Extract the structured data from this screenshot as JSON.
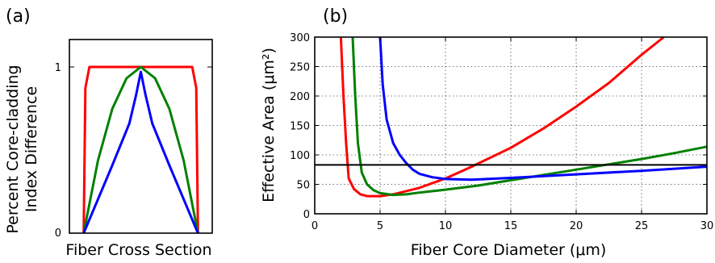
{
  "chart_data": [
    {
      "panel_label": "(a)",
      "type": "line",
      "title": "",
      "xlabel": "Fiber Cross Section",
      "ylabel_lines": [
        "Percent Core-cladding",
        "Index Difference"
      ],
      "y_ticks": [
        "0",
        "1"
      ],
      "ylim": [
        0,
        1.2
      ],
      "xlim": [
        -1.25,
        1.25
      ],
      "grid": false,
      "series": [
        {
          "color": "#ff0000",
          "profile": "step",
          "points": [
            [
              -1,
              0
            ],
            [
              -0.97,
              0.9
            ],
            [
              -0.9,
              1.03
            ],
            [
              0.9,
              1.03
            ],
            [
              0.97,
              0.9
            ],
            [
              1,
              0
            ]
          ]
        },
        {
          "color": "#008000",
          "profile": "parabolic",
          "points": [
            [
              -1,
              0
            ],
            [
              -0.75,
              0.45
            ],
            [
              -0.5,
              0.77
            ],
            [
              -0.25,
              0.96
            ],
            [
              0,
              1.03
            ],
            [
              0.25,
              0.96
            ],
            [
              0.5,
              0.77
            ],
            [
              0.75,
              0.45
            ],
            [
              1,
              0
            ]
          ]
        },
        {
          "color": "#0000ff",
          "profile": "triangular",
          "points": [
            [
              -1,
              0
            ],
            [
              -0.5,
              0.42
            ],
            [
              -0.2,
              0.68
            ],
            [
              -0.08,
              0.86
            ],
            [
              0,
              1.0
            ],
            [
              0.08,
              0.86
            ],
            [
              0.2,
              0.68
            ],
            [
              0.5,
              0.42
            ],
            [
              1,
              0
            ]
          ]
        }
      ]
    },
    {
      "panel_label": "(b)",
      "type": "line",
      "title": "",
      "xlabel": "Fiber Core Diameter (μm)",
      "ylabel": "Effective Area (μm²)",
      "xlim": [
        0,
        30
      ],
      "ylim": [
        0,
        300
      ],
      "x_ticks": [
        "0",
        "5",
        "10",
        "15",
        "20",
        "25",
        "30"
      ],
      "y_ticks": [
        "0",
        "50",
        "100",
        "150",
        "200",
        "250",
        "300"
      ],
      "grid": true,
      "hline": 83,
      "hline_color": "#000000",
      "series": [
        {
          "color": "#ff0000",
          "x": [
            2.0,
            2.2,
            2.4,
            2.6,
            3.0,
            3.5,
            4.0,
            5.0,
            6.0,
            8.0,
            10.0,
            12.0,
            15.0,
            17.5,
            20.0,
            22.5,
            25.0,
            26.7
          ],
          "y": [
            300,
            200,
            120,
            60,
            42,
            33,
            30,
            30,
            33,
            44,
            60,
            80,
            112,
            145,
            182,
            222,
            270,
            300
          ]
        },
        {
          "color": "#008000",
          "x": [
            2.9,
            3.1,
            3.3,
            3.6,
            4.0,
            4.5,
            5.0,
            6.0,
            7.0,
            8.0,
            10.0,
            12.5,
            15.0,
            17.5,
            20.0,
            22.5,
            25.0,
            27.5,
            30.0
          ],
          "y": [
            300,
            200,
            120,
            70,
            50,
            40,
            35,
            32,
            33,
            36,
            41,
            48,
            57,
            66,
            75,
            84,
            93,
            103,
            114
          ]
        },
        {
          "color": "#0000ff",
          "x": [
            5.0,
            5.2,
            5.5,
            6.0,
            6.5,
            7.0,
            7.5,
            8.0,
            9.0,
            10.0,
            12.0,
            15.0,
            20.0,
            25.0,
            30.0
          ],
          "y": [
            300,
            220,
            160,
            120,
            100,
            86,
            75,
            68,
            62,
            59,
            58,
            61,
            67,
            73,
            80
          ]
        }
      ]
    }
  ]
}
